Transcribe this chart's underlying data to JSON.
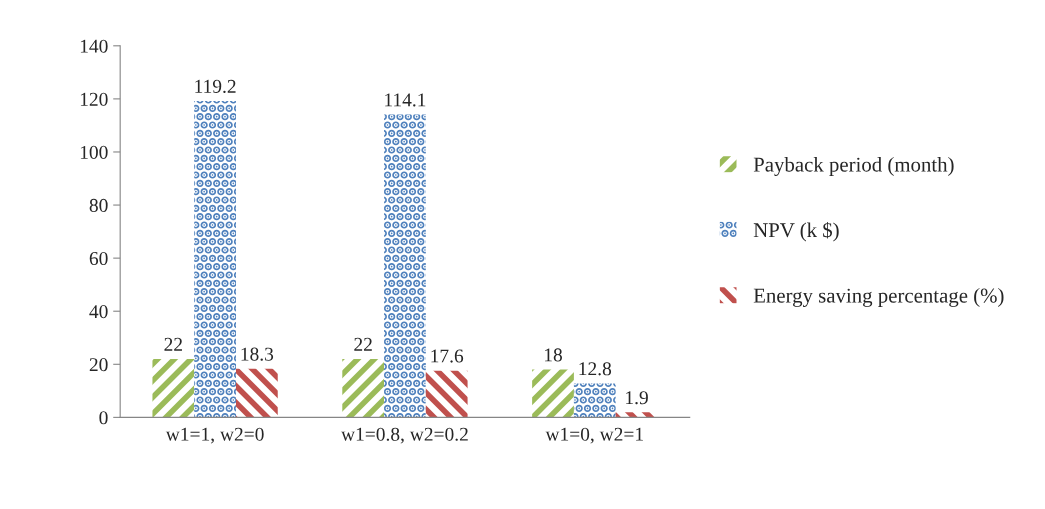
{
  "chart_data": {
    "type": "bar",
    "categories": [
      "w1=1, w2=0",
      "w1=0.8, w2=0.2",
      "w1=0, w2=1"
    ],
    "series": [
      {
        "name": "Payback period (month)",
        "color": "#9bbb59",
        "values": [
          22,
          22,
          18
        ]
      },
      {
        "name": "NPV (k $)",
        "color": "#4f81bd",
        "values": [
          119.2,
          114.1,
          12.8
        ]
      },
      {
        "name": "Energy saving percentage (%)",
        "color": "#c0504d",
        "values": [
          18.3,
          17.6,
          1.9
        ]
      }
    ],
    "ylim": [
      0,
      140
    ],
    "yticks": [
      0,
      20,
      40,
      60,
      80,
      100,
      120,
      140
    ],
    "data_labels": true,
    "grid": false,
    "legend": "right"
  }
}
